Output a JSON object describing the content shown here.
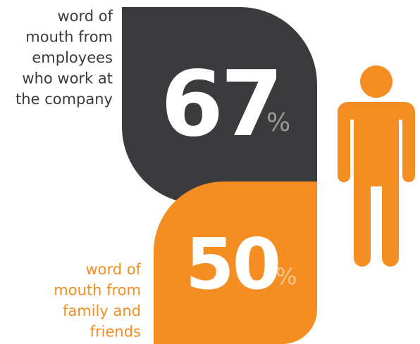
{
  "stats": [
    {
      "value": 67,
      "unit": "%",
      "label_lines": [
        "word of",
        "mouth from",
        "employees",
        "who work at",
        "the company"
      ]
    },
    {
      "value": 50,
      "unit": "%",
      "label_lines": [
        "word of",
        "mouth from",
        "family and",
        "friends"
      ]
    }
  ]
}
